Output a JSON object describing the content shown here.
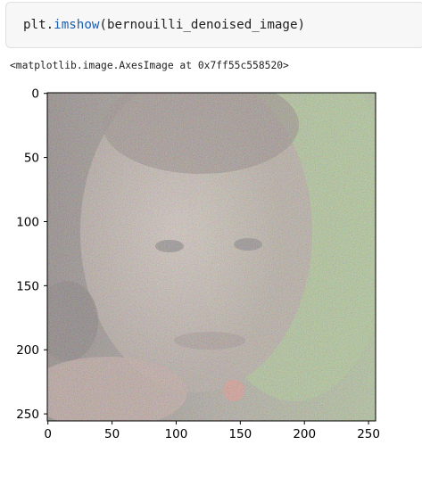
{
  "code_cell": {
    "prefix": "plt.",
    "function": "imshow",
    "arguments": "(bernouilli_denoised_image)"
  },
  "output": {
    "repr": "<matplotlib.image.AxesImage at 0x7ff55c558520>"
  },
  "colors": {
    "code_background": "#f7f7f7",
    "function_name": "#1a5fb4",
    "text": "#212121"
  },
  "plot": {
    "content": "noisy photograph of a child's face rendered with imshow; multicolored speckle noise over skin and a green background region on the right",
    "x_ticks": [
      "0",
      "50",
      "100",
      "150",
      "200",
      "250"
    ],
    "y_ticks": [
      "0",
      "50",
      "100",
      "150",
      "200",
      "250"
    ],
    "x_range": [
      0,
      255
    ],
    "y_range": [
      0,
      255
    ],
    "y_inverted": true
  }
}
